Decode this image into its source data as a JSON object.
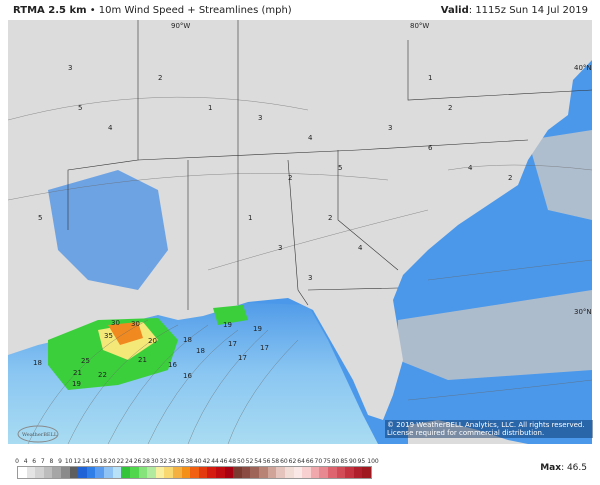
{
  "header": {
    "model": "RTMA 2.5 km",
    "separator": "•",
    "product": "10m Wind Speed + Streamlines (mph)"
  },
  "valid": {
    "label": "Valid",
    "value": ": 1115z Sun 14 Jul 2019"
  },
  "map": {
    "grid_labels": [
      "90°W",
      "80°W",
      "40°N",
      "30°N"
    ],
    "copyright": "© 2019 WeatherBELL Analytics, LLC. All rights reserved. License required for commercial distribution.",
    "logo_text": "WeatherBELL",
    "wind_labels": [
      "30",
      "30",
      "35",
      "25",
      "21",
      "22",
      "19",
      "21",
      "20",
      "18",
      "18",
      "16",
      "16",
      "17",
      "17",
      "19",
      "18",
      "19",
      "17",
      "3",
      "5",
      "4",
      "2",
      "1",
      "3",
      "4",
      "2",
      "5",
      "3",
      "6",
      "4",
      "2",
      "1",
      "3",
      "2",
      "4",
      "1",
      "2",
      "3",
      "5"
    ],
    "colors": {
      "land": "#dcdcdc",
      "gulf_light": "#a9dcf2",
      "ocean_mid": "#5aa6ec",
      "ocean_dark": "#2a7fe0",
      "green": "#3ccf3c",
      "yellow": "#f4e878",
      "orange": "#f08a20"
    }
  },
  "colorbar": {
    "labels": [
      "0",
      "4",
      "6",
      "7",
      "8",
      "9",
      "10",
      "12",
      "14",
      "16",
      "18",
      "20",
      "22",
      "24",
      "26",
      "28",
      "30",
      "32",
      "34",
      "36",
      "38",
      "40",
      "42",
      "44",
      "46",
      "48",
      "50",
      "52",
      "54",
      "56",
      "58",
      "60",
      "62",
      "64",
      "66",
      "70",
      "75",
      "80",
      "85",
      "90",
      "95",
      "100"
    ],
    "colors": [
      "#ffffff",
      "#e4e4e4",
      "#d2d2d2",
      "#bdbdbd",
      "#a6a6a6",
      "#8a8a8a",
      "#5e5e5e",
      "#1f63d6",
      "#2f7ee8",
      "#5a9cf0",
      "#8fc2f5",
      "#b8e0f7",
      "#34c43a",
      "#52d64e",
      "#86e27a",
      "#b2eba0",
      "#f8f0a0",
      "#f8d870",
      "#f4b040",
      "#f49018",
      "#f06010",
      "#e43a10",
      "#d41c10",
      "#c00c10",
      "#a80010",
      "#7a3a30",
      "#8a4c42",
      "#9e6458",
      "#b88274",
      "#d0a498",
      "#e4c4bc",
      "#f2dcd6",
      "#fae8e6",
      "#f8d0d0",
      "#f0a8ac",
      "#e88890",
      "#de6470",
      "#d24c58",
      "#c43440",
      "#b0202c",
      "#a01820"
    ]
  },
  "max": {
    "label": "Max",
    "value": ": 46.5"
  }
}
